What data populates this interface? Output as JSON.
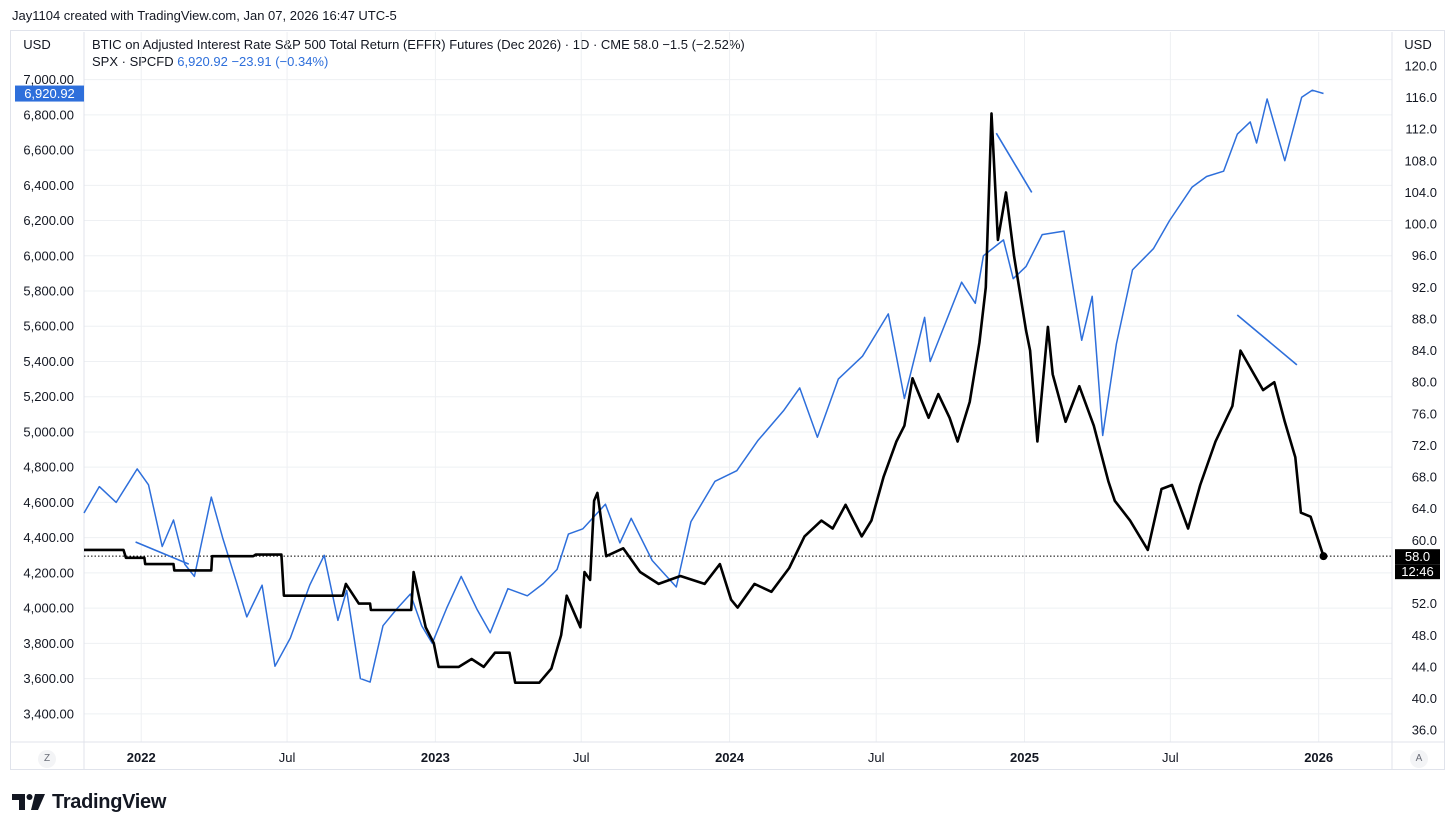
{
  "caption": "Jay1104 created with TradingView.com, Jan 07, 2026 16:47 UTC-5",
  "currency_left": "USD",
  "currency_right": "USD",
  "legend": {
    "line1": "BTIC on Adjusted Interest Rate S&P 500 Total Return (EFFR) Futures (Dec 2026) · 1D · CME  58.0  −1.5 (−2.52%)",
    "line2_label": "SPX · SPCFD",
    "line2_value": "6,920.92  −23.91 (−0.34%)"
  },
  "badges": {
    "spx_last": "6,920.92",
    "btic_last": "58.0",
    "countdown": "12:46"
  },
  "buttons": {
    "z": "Z",
    "a": "A"
  },
  "brand": "TradingView",
  "colors": {
    "spx": "#2e6fdb",
    "btic": "#000000",
    "grid": "#eef0f3",
    "axis_text": "#131722"
  },
  "chart_data": {
    "type": "line",
    "x_tick_labels": [
      "2022",
      "Jul",
      "2023",
      "Jul",
      "2024",
      "Jul",
      "2025",
      "Jul",
      "2026"
    ],
    "x_tick_dates": [
      "2022-01-01",
      "2022-07-01",
      "2023-01-01",
      "2023-07-01",
      "2024-01-01",
      "2024-07-01",
      "2025-01-01",
      "2025-07-01",
      "2026-01-01"
    ],
    "x_range": [
      "2021-10-22",
      "2026-04-02"
    ],
    "y_left": {
      "label": "USD",
      "range": [
        3240,
        7100
      ],
      "ticks": [
        3400,
        3600,
        3800,
        4000,
        4200,
        4400,
        4600,
        4800,
        5000,
        5200,
        5400,
        5600,
        5800,
        6000,
        6200,
        6400,
        6600,
        6800,
        7000
      ],
      "tick_labels": [
        "3,400.00",
        "3,600.00",
        "3,800.00",
        "4,000.00",
        "4,200.00",
        "4,400.00",
        "4,600.00",
        "4,800.00",
        "5,000.00",
        "5,200.00",
        "5,400.00",
        "5,600.00",
        "5,800.00",
        "6,000.00",
        "6,200.00",
        "6,400.00",
        "6,600.00",
        "6,800.00",
        "7,000.00"
      ]
    },
    "y_right": {
      "label": "USD",
      "range": [
        34.5,
        120.5
      ],
      "ticks": [
        36,
        40,
        44,
        48,
        52,
        60,
        64,
        68,
        72,
        76,
        80,
        84,
        88,
        92,
        96,
        100,
        104,
        108,
        112,
        116,
        120
      ],
      "tick_labels": [
        "36.0",
        "40.0",
        "44.0",
        "48.0",
        "52.0",
        "60.0",
        "64.0",
        "68.0",
        "72.0",
        "76.0",
        "80.0",
        "84.0",
        "88.0",
        "92.0",
        "96.0",
        "100.0",
        "104.0",
        "108.0",
        "112.0",
        "116.0",
        "120.0"
      ]
    },
    "last_value_line": 58.0,
    "series": [
      {
        "name": "SPX · SPCFD",
        "axis": "left",
        "color": "#2e6fdb",
        "points": [
          [
            "2021-10-22",
            4540
          ],
          [
            "2021-11-10",
            4690
          ],
          [
            "2021-12-01",
            4600
          ],
          [
            "2021-12-27",
            4790
          ],
          [
            "2022-01-10",
            4700
          ],
          [
            "2022-01-27",
            4350
          ],
          [
            "2022-02-10",
            4500
          ],
          [
            "2022-02-24",
            4250
          ],
          [
            "2022-03-08",
            4180
          ],
          [
            "2022-03-29",
            4630
          ],
          [
            "2022-04-12",
            4400
          ],
          [
            "2022-04-29",
            4150
          ],
          [
            "2022-05-12",
            3950
          ],
          [
            "2022-05-31",
            4130
          ],
          [
            "2022-06-16",
            3670
          ],
          [
            "2022-07-05",
            3830
          ],
          [
            "2022-07-29",
            4130
          ],
          [
            "2022-08-16",
            4300
          ],
          [
            "2022-09-02",
            3930
          ],
          [
            "2022-09-13",
            4100
          ],
          [
            "2022-09-30",
            3600
          ],
          [
            "2022-10-12",
            3580
          ],
          [
            "2022-10-28",
            3900
          ],
          [
            "2022-11-15",
            4000
          ],
          [
            "2022-12-01",
            4080
          ],
          [
            "2022-12-15",
            3900
          ],
          [
            "2022-12-28",
            3800
          ],
          [
            "2023-01-15",
            4000
          ],
          [
            "2023-02-02",
            4180
          ],
          [
            "2023-02-22",
            3990
          ],
          [
            "2023-03-10",
            3860
          ],
          [
            "2023-04-01",
            4110
          ],
          [
            "2023-04-25",
            4070
          ],
          [
            "2023-05-15",
            4140
          ],
          [
            "2023-06-01",
            4220
          ],
          [
            "2023-06-15",
            4420
          ],
          [
            "2023-07-03",
            4450
          ],
          [
            "2023-07-31",
            4590
          ],
          [
            "2023-08-18",
            4370
          ],
          [
            "2023-09-01",
            4510
          ],
          [
            "2023-09-27",
            4270
          ],
          [
            "2023-10-27",
            4120
          ],
          [
            "2023-11-14",
            4490
          ],
          [
            "2023-12-14",
            4720
          ],
          [
            "2024-01-10",
            4780
          ],
          [
            "2024-02-05",
            4950
          ],
          [
            "2024-03-08",
            5120
          ],
          [
            "2024-03-28",
            5250
          ],
          [
            "2024-04-19",
            4970
          ],
          [
            "2024-05-15",
            5300
          ],
          [
            "2024-06-14",
            5430
          ],
          [
            "2024-07-16",
            5670
          ],
          [
            "2024-08-05",
            5190
          ],
          [
            "2024-08-30",
            5650
          ],
          [
            "2024-09-06",
            5400
          ],
          [
            "2024-10-15",
            5850
          ],
          [
            "2024-11-01",
            5730
          ],
          [
            "2024-11-11",
            6000
          ],
          [
            "2024-12-06",
            6090
          ],
          [
            "2024-12-18",
            5870
          ],
          [
            "2025-01-03",
            5940
          ],
          [
            "2025-01-23",
            6120
          ],
          [
            "2025-02-19",
            6140
          ],
          [
            "2025-03-13",
            5520
          ],
          [
            "2025-03-26",
            5770
          ],
          [
            "2025-04-08",
            4980
          ],
          [
            "2025-04-25",
            5500
          ],
          [
            "2025-05-15",
            5920
          ],
          [
            "2025-06-10",
            6040
          ],
          [
            "2025-06-30",
            6200
          ],
          [
            "2025-07-28",
            6390
          ],
          [
            "2025-08-15",
            6450
          ],
          [
            "2025-09-05",
            6480
          ],
          [
            "2025-09-22",
            6690
          ],
          [
            "2025-10-08",
            6760
          ],
          [
            "2025-10-16",
            6640
          ],
          [
            "2025-10-29",
            6890
          ],
          [
            "2025-11-20",
            6540
          ],
          [
            "2025-12-11",
            6900
          ],
          [
            "2025-12-24",
            6940
          ],
          [
            "2026-01-07",
            6921
          ]
        ]
      },
      {
        "name": "BTIC on Adjusted Interest Rate S&P 500 Total Return (EFFR) Futures (Dec 2026)",
        "axis": "right",
        "color": "#000000",
        "points": [
          [
            "2021-10-22",
            58.8
          ],
          [
            "2021-12-10",
            58.8
          ],
          [
            "2021-12-13",
            57.8
          ],
          [
            "2022-01-05",
            57.8
          ],
          [
            "2022-01-06",
            57.0
          ],
          [
            "2022-02-10",
            57.0
          ],
          [
            "2022-02-11",
            56.2
          ],
          [
            "2022-03-29",
            56.2
          ],
          [
            "2022-03-30",
            58.0
          ],
          [
            "2022-05-20",
            58.0
          ],
          [
            "2022-05-23",
            58.2
          ],
          [
            "2022-06-24",
            58.2
          ],
          [
            "2022-06-27",
            53.0
          ],
          [
            "2022-09-08",
            53.0
          ],
          [
            "2022-09-12",
            54.5
          ],
          [
            "2022-09-28",
            52.0
          ],
          [
            "2022-10-12",
            52.0
          ],
          [
            "2022-10-13",
            51.2
          ],
          [
            "2022-12-02",
            51.2
          ],
          [
            "2022-12-05",
            56.0
          ],
          [
            "2022-12-20",
            49.0
          ],
          [
            "2022-12-30",
            47.0
          ],
          [
            "2023-01-05",
            44.0
          ],
          [
            "2023-01-30",
            44.0
          ],
          [
            "2023-02-15",
            45.0
          ],
          [
            "2023-03-02",
            44.0
          ],
          [
            "2023-03-16",
            45.8
          ],
          [
            "2023-04-03",
            45.8
          ],
          [
            "2023-04-10",
            42.0
          ],
          [
            "2023-05-10",
            42.0
          ],
          [
            "2023-05-25",
            43.8
          ],
          [
            "2023-06-06",
            48.0
          ],
          [
            "2023-06-13",
            53.0
          ],
          [
            "2023-06-30",
            49.0
          ],
          [
            "2023-07-05",
            56.0
          ],
          [
            "2023-07-12",
            55.0
          ],
          [
            "2023-07-17",
            65.0
          ],
          [
            "2023-07-21",
            66.0
          ],
          [
            "2023-08-01",
            58.0
          ],
          [
            "2023-08-22",
            59.0
          ],
          [
            "2023-09-12",
            56.0
          ],
          [
            "2023-10-05",
            54.5
          ],
          [
            "2023-11-01",
            55.5
          ],
          [
            "2023-12-01",
            54.5
          ],
          [
            "2023-12-20",
            57.0
          ],
          [
            "2024-01-03",
            52.5
          ],
          [
            "2024-01-11",
            51.5
          ],
          [
            "2024-02-01",
            54.5
          ],
          [
            "2024-02-22",
            53.5
          ],
          [
            "2024-03-15",
            56.5
          ],
          [
            "2024-04-03",
            60.5
          ],
          [
            "2024-04-24",
            62.5
          ],
          [
            "2024-05-08",
            61.5
          ],
          [
            "2024-05-24",
            64.5
          ],
          [
            "2024-06-13",
            60.5
          ],
          [
            "2024-06-25",
            62.5
          ],
          [
            "2024-07-10",
            68.0
          ],
          [
            "2024-07-26",
            72.5
          ],
          [
            "2024-08-05",
            74.5
          ],
          [
            "2024-08-15",
            80.5
          ],
          [
            "2024-09-04",
            75.5
          ],
          [
            "2024-09-16",
            78.5
          ],
          [
            "2024-09-30",
            75.5
          ],
          [
            "2024-10-10",
            72.5
          ],
          [
            "2024-10-25",
            77.5
          ],
          [
            "2024-11-06",
            85.0
          ],
          [
            "2024-11-14",
            92.0
          ],
          [
            "2024-11-21",
            114.0
          ],
          [
            "2024-11-29",
            98.0
          ],
          [
            "2024-12-09",
            104.0
          ],
          [
            "2024-12-19",
            96.0
          ],
          [
            "2025-01-03",
            86.5
          ],
          [
            "2025-01-08",
            84.0
          ],
          [
            "2025-01-17",
            72.5
          ],
          [
            "2025-01-30",
            87.0
          ],
          [
            "2025-02-05",
            81.0
          ],
          [
            "2025-02-21",
            75.0
          ],
          [
            "2025-03-10",
            79.5
          ],
          [
            "2025-03-28",
            74.5
          ],
          [
            "2025-04-15",
            67.5
          ],
          [
            "2025-04-23",
            65.0
          ],
          [
            "2025-05-12",
            62.5
          ],
          [
            "2025-06-03",
            58.8
          ],
          [
            "2025-06-20",
            66.5
          ],
          [
            "2025-07-03",
            67.0
          ],
          [
            "2025-07-23",
            61.5
          ],
          [
            "2025-08-07",
            67.0
          ],
          [
            "2025-08-26",
            72.5
          ],
          [
            "2025-09-16",
            77.0
          ],
          [
            "2025-09-26",
            84.0
          ],
          [
            "2025-10-10",
            81.5
          ],
          [
            "2025-10-24",
            79.0
          ],
          [
            "2025-11-07",
            80.0
          ],
          [
            "2025-11-20",
            75.0
          ],
          [
            "2025-12-03",
            70.5
          ],
          [
            "2025-12-10",
            63.5
          ],
          [
            "2025-12-22",
            63.0
          ],
          [
            "2026-01-07",
            58.0
          ]
        ]
      }
    ]
  }
}
